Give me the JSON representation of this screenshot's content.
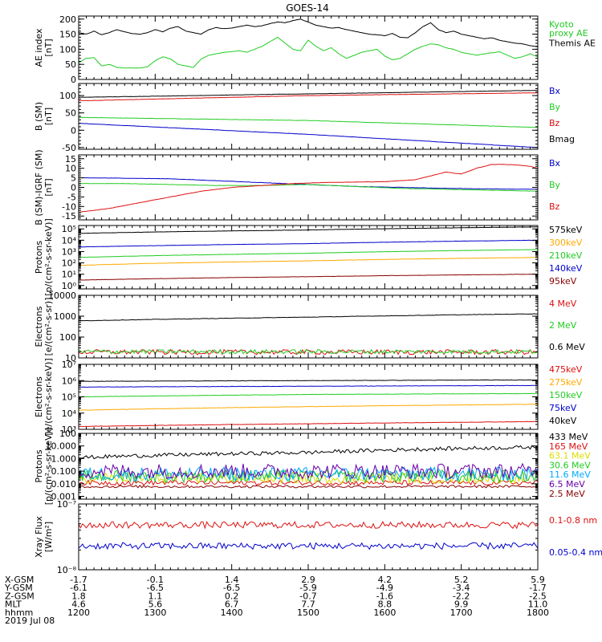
{
  "title": "GOES-14",
  "colors": {
    "black": "#000000",
    "green": "#22cc22",
    "red": "#dd1111",
    "blue": "#0000cc",
    "orange": "#ffaa00",
    "cyan": "#00aaff",
    "yellow": "#dddd00",
    "darkred": "#880000",
    "purple": "#6600aa"
  },
  "chart_data": [
    {
      "id": "ae",
      "type": "line",
      "ylabel": [
        "AE index",
        "[nT]"
      ],
      "scale": "linear",
      "ylim": [
        0,
        210
      ],
      "ticks": [
        0,
        50,
        100,
        150,
        200
      ],
      "tick_labels": [
        "0",
        "50",
        "100",
        "150",
        "200"
      ],
      "minor_step": 10,
      "x_range": [
        1200,
        1800
      ],
      "series": [
        {
          "name": "Kyoto proxy AE",
          "color": "#22cc22",
          "label_lines": [
            "Kyoto",
            "proxy AE"
          ],
          "x": [
            1200,
            1210,
            1220,
            1230,
            1240,
            1250,
            1260,
            1270,
            1280,
            1290,
            1300,
            1310,
            1320,
            1330,
            1340,
            1350,
            1360,
            1370,
            1380,
            1390,
            1400,
            1410,
            1420,
            1430,
            1440,
            1450,
            1460,
            1470,
            1480,
            1490,
            1500,
            1510,
            1520,
            1530,
            1540,
            1550,
            1560,
            1570,
            1580,
            1590,
            1600,
            1610,
            1620,
            1630,
            1640,
            1650,
            1660,
            1670,
            1680,
            1690,
            1700,
            1710,
            1720,
            1730,
            1740,
            1750,
            1760,
            1770,
            1780,
            1790,
            1800
          ],
          "y": [
            55,
            70,
            72,
            45,
            50,
            40,
            38,
            38,
            38,
            42,
            62,
            75,
            68,
            50,
            45,
            40,
            68,
            80,
            85,
            90,
            92,
            95,
            90,
            100,
            110,
            125,
            140,
            120,
            100,
            95,
            130,
            110,
            95,
            105,
            85,
            70,
            80,
            90,
            95,
            100,
            78,
            65,
            70,
            85,
            100,
            110,
            118,
            115,
            105,
            100,
            90,
            85,
            80,
            85,
            88,
            92,
            80,
            70,
            75,
            85,
            75
          ]
        },
        {
          "name": "Themis AE",
          "color": "#000000",
          "label_lines": [
            "Themis AE"
          ],
          "x": [
            1200,
            1210,
            1220,
            1230,
            1240,
            1250,
            1260,
            1270,
            1280,
            1290,
            1300,
            1310,
            1320,
            1330,
            1340,
            1350,
            1360,
            1370,
            1380,
            1390,
            1400,
            1410,
            1420,
            1430,
            1440,
            1450,
            1460,
            1470,
            1480,
            1490,
            1500,
            1510,
            1520,
            1530,
            1540,
            1550,
            1560,
            1570,
            1580,
            1590,
            1600,
            1610,
            1620,
            1630,
            1640,
            1650,
            1660,
            1670,
            1680,
            1690,
            1700,
            1710,
            1720,
            1730,
            1740,
            1750,
            1760,
            1770,
            1780,
            1790,
            1800
          ],
          "y": [
            155,
            150,
            160,
            148,
            155,
            165,
            158,
            152,
            150,
            155,
            165,
            158,
            170,
            175,
            160,
            155,
            150,
            165,
            172,
            168,
            170,
            175,
            180,
            175,
            178,
            185,
            190,
            188,
            195,
            200,
            190,
            180,
            175,
            170,
            172,
            165,
            160,
            155,
            150,
            148,
            145,
            152,
            140,
            138,
            155,
            175,
            188,
            165,
            155,
            160,
            150,
            145,
            140,
            135,
            138,
            130,
            125,
            120,
            118,
            112,
            108
          ]
        }
      ]
    },
    {
      "id": "bsm",
      "type": "line",
      "ylabel": [
        "B (SM)",
        "[nT]"
      ],
      "scale": "linear",
      "ylim": [
        -55,
        135
      ],
      "ticks": [
        -50,
        0,
        50,
        100
      ],
      "tick_labels": [
        "-50",
        "0",
        "50",
        "100"
      ],
      "minor_step": 10,
      "x_range": [
        1200,
        1800
      ],
      "series": [
        {
          "name": "Bx",
          "color": "#0000cc",
          "label_lines": [
            "Bx"
          ],
          "x": [
            1200,
            1500,
            1800
          ],
          "y": [
            20,
            -12,
            -50
          ]
        },
        {
          "name": "By",
          "color": "#22cc22",
          "label_lines": [
            "By"
          ],
          "x": [
            1200,
            1500,
            1800
          ],
          "y": [
            37,
            28,
            8
          ]
        },
        {
          "name": "Bz",
          "color": "#dd1111",
          "label_lines": [
            "Bz"
          ],
          "x": [
            1200,
            1500,
            1800
          ],
          "y": [
            85,
            100,
            108
          ]
        },
        {
          "name": "Bmag",
          "color": "#000000",
          "label_lines": [
            "Bmag"
          ],
          "x": [
            1200,
            1500,
            1800
          ],
          "y": [
            95,
            105,
            115
          ]
        }
      ]
    },
    {
      "id": "bigrf",
      "type": "line",
      "ylabel": [
        "B (SM)-IGRF (SM)",
        "[nT]"
      ],
      "scale": "linear",
      "ylim": [
        -17,
        17
      ],
      "ticks": [
        -15,
        -10,
        -5,
        0,
        5,
        10,
        15
      ],
      "tick_labels": [
        "-15",
        "-10",
        "-5",
        "0",
        "5",
        "10",
        "15"
      ],
      "minor_step": 1,
      "x_range": [
        1200,
        1800
      ],
      "series": [
        {
          "name": "Bx",
          "color": "#0000cc",
          "label_lines": [
            "Bx"
          ],
          "x": [
            1200,
            1260,
            1320,
            1380,
            1440,
            1500,
            1560,
            1620,
            1680,
            1740,
            1800
          ],
          "y": [
            5,
            4.8,
            4.5,
            3.5,
            2.5,
            1.5,
            0.5,
            0,
            -0.5,
            -0.8,
            -1
          ]
        },
        {
          "name": "By",
          "color": "#22cc22",
          "label_lines": [
            "By"
          ],
          "x": [
            1200,
            1260,
            1320,
            1380,
            1440,
            1500,
            1560,
            1620,
            1680,
            1740,
            1800
          ],
          "y": [
            2,
            2,
            1.5,
            1,
            1,
            1.5,
            0.5,
            -0.5,
            -1,
            -1.5,
            -2
          ]
        },
        {
          "name": "Bz",
          "color": "#dd1111",
          "label_lines": [
            "Bz"
          ],
          "x": [
            1200,
            1240,
            1280,
            1320,
            1360,
            1400,
            1440,
            1480,
            1520,
            1560,
            1600,
            1640,
            1660,
            1680,
            1700,
            1720,
            1740,
            1760,
            1780,
            1790,
            1800
          ],
          "y": [
            -13,
            -11,
            -8,
            -5,
            -2,
            0,
            1,
            2,
            2.5,
            2.8,
            3,
            4,
            6,
            8,
            7,
            10,
            12,
            12,
            11.5,
            11,
            10
          ]
        }
      ]
    },
    {
      "id": "protons_low",
      "type": "line",
      "ylabel": [
        "Protons",
        "[p/(cm²-s-sr-keV)]"
      ],
      "scale": "log",
      "ylim": [
        0.5,
        200000
      ],
      "ticks": [
        1,
        10,
        100,
        1000,
        10000,
        100000
      ],
      "tick_labels": [
        "10⁰",
        "10¹",
        "10²",
        "10³",
        "10⁴",
        "10⁵"
      ],
      "x_range": [
        1200,
        1800
      ],
      "series": [
        {
          "name": "575keV",
          "color": "#000000",
          "label_lines": [
            "575keV"
          ],
          "x": [
            1200,
            1500,
            1800
          ],
          "y": [
            40000,
            80000,
            150000
          ]
        },
        {
          "name": "300keV",
          "color": "#ffaa00",
          "label_lines": [
            "300keV"
          ],
          "x": [
            1200,
            1500,
            1800
          ],
          "y": [
            60,
            150,
            300
          ]
        },
        {
          "name": "210keV",
          "color": "#22cc22",
          "label_lines": [
            "210keV"
          ],
          "x": [
            1200,
            1500,
            1800
          ],
          "y": [
            300,
            700,
            1500
          ]
        },
        {
          "name": "140keV",
          "color": "#0000cc",
          "label_lines": [
            "140keV"
          ],
          "x": [
            1200,
            1500,
            1800
          ],
          "y": [
            2500,
            5000,
            10000
          ]
        },
        {
          "name": "95keV",
          "color": "#880000",
          "label_lines": [
            "95keV"
          ],
          "x": [
            1200,
            1500,
            1800
          ],
          "y": [
            3,
            6,
            10
          ]
        }
      ]
    },
    {
      "id": "electrons_mev",
      "type": "line",
      "ylabel": [
        "Electrons",
        "[e/(cm²-s-sr)]"
      ],
      "scale": "log",
      "ylim": [
        10,
        10000
      ],
      "ticks": [
        10,
        100,
        1000,
        10000
      ],
      "tick_labels": [
        "10",
        "100",
        "1000",
        "10000"
      ],
      "x_range": [
        1200,
        1800
      ],
      "series": [
        {
          "name": "4 MeV",
          "color": "#dd1111",
          "label_lines": [
            "4 MeV"
          ],
          "x": [
            1200,
            1800
          ],
          "y": [
            19,
            19
          ],
          "noise": 0.12
        },
        {
          "name": "2 MeV",
          "color": "#22cc22",
          "label_lines": [
            "2 MeV"
          ],
          "x": [
            1200,
            1800
          ],
          "y": [
            20,
            20
          ],
          "noise": 0.1
        },
        {
          "name": "0.6 MeV",
          "color": "#000000",
          "label_lines": [
            "0.6 MeV"
          ],
          "x": [
            1200,
            1500,
            1800
          ],
          "y": [
            600,
            900,
            1300
          ]
        }
      ]
    },
    {
      "id": "electrons_kev",
      "type": "line",
      "ylabel": [
        "Electrons",
        "[e/(cm²-s-sr-keV)]"
      ],
      "scale": "log",
      "ylim": [
        1000,
        10000000
      ],
      "ticks": [
        1000,
        10000,
        100000,
        1000000,
        10000000
      ],
      "tick_labels": [
        "10³",
        "10⁴",
        "10⁵",
        "10⁶",
        "10⁷"
      ],
      "x_range": [
        1200,
        1800
      ],
      "series": [
        {
          "name": "475keV",
          "color": "#dd1111",
          "label_lines": [
            "475keV"
          ],
          "x": [
            1200,
            1500,
            1800
          ],
          "y": [
            1500,
            2200,
            3000
          ]
        },
        {
          "name": "275keV",
          "color": "#ffaa00",
          "label_lines": [
            "275keV"
          ],
          "x": [
            1200,
            1500,
            1800
          ],
          "y": [
            15000,
            25000,
            35000
          ]
        },
        {
          "name": "150keV",
          "color": "#22cc22",
          "label_lines": [
            "150keV"
          ],
          "x": [
            1200,
            1500,
            1800
          ],
          "y": [
            100000,
            140000,
            160000
          ]
        },
        {
          "name": "75keV",
          "color": "#0000cc",
          "label_lines": [
            "75keV"
          ],
          "x": [
            1200,
            1500,
            1800
          ],
          "y": [
            400000,
            450000,
            500000
          ]
        },
        {
          "name": "40keV",
          "color": "#000000",
          "label_lines": [
            "40keV"
          ],
          "x": [
            1200,
            1500,
            1800
          ],
          "y": [
            900000,
            1000000,
            1100000
          ]
        }
      ]
    },
    {
      "id": "protons_mev",
      "type": "line",
      "ylabel": [
        "Protons",
        "[p/(cm²-s-sr-keV)]"
      ],
      "scale": "log",
      "ylim": [
        0.0006,
        100
      ],
      "ticks": [
        0.001,
        0.01,
        0.1,
        1,
        10,
        100
      ],
      "tick_labels": [
        "0.001",
        "0.010",
        "0.100",
        "1.000",
        "10.000",
        "100"
      ],
      "x_range": [
        1200,
        1800
      ],
      "series": [
        {
          "name": "433 MeV",
          "color": "#000000",
          "label_lines": [
            "433 MeV"
          ],
          "x": [
            1200,
            1500,
            1800
          ],
          "y": [
            1.2,
            3,
            8
          ],
          "noise": 0.15
        },
        {
          "name": "165 MeV",
          "color": "#dd1111",
          "label_lines": [
            "165 MeV"
          ],
          "x": [
            1200,
            1800
          ],
          "y": [
            0.012,
            0.012
          ],
          "noise": 0.2
        },
        {
          "name": "63.1 MeV",
          "color": "#dddd00",
          "label_lines": [
            "63.1 MeV"
          ],
          "x": [
            1200,
            1800
          ],
          "y": [
            0.03,
            0.03
          ],
          "noise": 0.45
        },
        {
          "name": "30.6 MeV",
          "color": "#22cc22",
          "label_lines": [
            "30.6 MeV"
          ],
          "x": [
            1200,
            1800
          ],
          "y": [
            0.04,
            0.04
          ],
          "noise": 0.5
        },
        {
          "name": "11.6 MeV",
          "color": "#00aaff",
          "label_lines": [
            "11.6 MeV"
          ],
          "x": [
            1200,
            1800
          ],
          "y": [
            0.06,
            0.06
          ],
          "noise": 0.55
        },
        {
          "name": "6.5 MeV",
          "color": "#6600aa",
          "label_lines": [
            "6.5 MeV"
          ],
          "x": [
            1200,
            1800
          ],
          "y": [
            0.1,
            0.1
          ],
          "noise": 0.6
        },
        {
          "name": "2.5 MeV",
          "color": "#880000",
          "label_lines": [
            "2.5 MeV"
          ],
          "x": [
            1200,
            1800
          ],
          "y": [
            0.006,
            0.006
          ],
          "noise": 0.1
        }
      ]
    },
    {
      "id": "xray",
      "type": "line",
      "ylabel": [
        "Xray Flux",
        "[W/m²]"
      ],
      "scale": "log",
      "ylim": [
        1e-08,
        1e-07
      ],
      "ticks": [
        1e-08,
        1e-07
      ],
      "tick_labels": [
        "10⁻⁸",
        "10⁻⁷"
      ],
      "x_range": [
        1200,
        1800
      ],
      "series": [
        {
          "name": "0.1-0.8 nm",
          "color": "#dd1111",
          "label_lines": [
            "0.1-0.8 nm"
          ],
          "x": [
            1200,
            1800
          ],
          "y": [
            4.8e-08,
            4.8e-08
          ],
          "noise": 0.05
        },
        {
          "name": "0.05-0.4 nm",
          "color": "#0000cc",
          "label_lines": [
            "0.05-0.4 nm"
          ],
          "x": [
            1200,
            1800
          ],
          "y": [
            2.3e-08,
            2.3e-08
          ],
          "noise": 0.05
        }
      ]
    }
  ],
  "xaxis": {
    "x_positions": [
      1200,
      1300,
      1400,
      1500,
      1600,
      1700,
      1800
    ],
    "rows": [
      {
        "label": "X-GSM",
        "values": [
          "-1.7",
          "-0.1",
          "1.4",
          "2.9",
          "4.2",
          "5.2",
          "5.9"
        ]
      },
      {
        "label": "Y-GSM",
        "values": [
          "-6.1",
          "-6.5",
          "-6.5",
          "-5.9",
          "-4.9",
          "-3.4",
          "-1.7"
        ]
      },
      {
        "label": "Z-GSM",
        "values": [
          "1.8",
          "1.1",
          "0.2",
          "-0.7",
          "-1.6",
          "-2.2",
          "-2.5"
        ]
      },
      {
        "label": "MLT",
        "values": [
          "4.6",
          "5.6",
          "6.7",
          "7.7",
          "8.8",
          "9.9",
          "11.0"
        ]
      },
      {
        "label": "hhmm",
        "values": [
          "1200",
          "1300",
          "1400",
          "1500",
          "1600",
          "1700",
          "1800"
        ]
      }
    ],
    "date": "2019 Jul 08"
  }
}
